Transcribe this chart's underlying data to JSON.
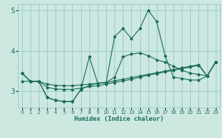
{
  "xlabel": "Humidex (Indice chaleur)",
  "xlim": [
    -0.5,
    23.5
  ],
  "ylim": [
    2.6,
    5.15
  ],
  "yticks": [
    3,
    4,
    5
  ],
  "xticks": [
    0,
    1,
    2,
    3,
    4,
    5,
    6,
    7,
    8,
    9,
    10,
    11,
    12,
    13,
    14,
    15,
    16,
    17,
    18,
    19,
    20,
    21,
    22,
    23
  ],
  "bg_color": "#cce8e0",
  "grid_color": "#99cccc",
  "line_color": "#1a6b5a",
  "s1": [
    3.45,
    3.25,
    3.25,
    2.85,
    2.78,
    2.75,
    2.75,
    3.05,
    3.85,
    3.2,
    3.22,
    4.35,
    4.55,
    4.3,
    4.55,
    5.0,
    4.72,
    3.88,
    3.35,
    3.32,
    3.28,
    3.28,
    3.38,
    3.72
  ],
  "s2": [
    3.45,
    3.25,
    3.25,
    2.85,
    2.78,
    2.75,
    2.75,
    3.05,
    3.15,
    3.2,
    3.22,
    3.35,
    3.85,
    3.92,
    3.95,
    3.88,
    3.78,
    3.72,
    3.62,
    3.52,
    3.45,
    3.42,
    3.38,
    3.72
  ],
  "s3": [
    3.25,
    3.25,
    3.25,
    3.18,
    3.15,
    3.14,
    3.14,
    3.16,
    3.18,
    3.2,
    3.22,
    3.26,
    3.3,
    3.34,
    3.38,
    3.42,
    3.46,
    3.5,
    3.54,
    3.58,
    3.62,
    3.66,
    3.38,
    3.72
  ],
  "s4": [
    3.45,
    3.25,
    3.25,
    3.1,
    3.06,
    3.05,
    3.05,
    3.08,
    3.12,
    3.14,
    3.18,
    3.22,
    3.26,
    3.3,
    3.35,
    3.4,
    3.44,
    3.48,
    3.52,
    3.56,
    3.6,
    3.64,
    3.38,
    3.72
  ]
}
